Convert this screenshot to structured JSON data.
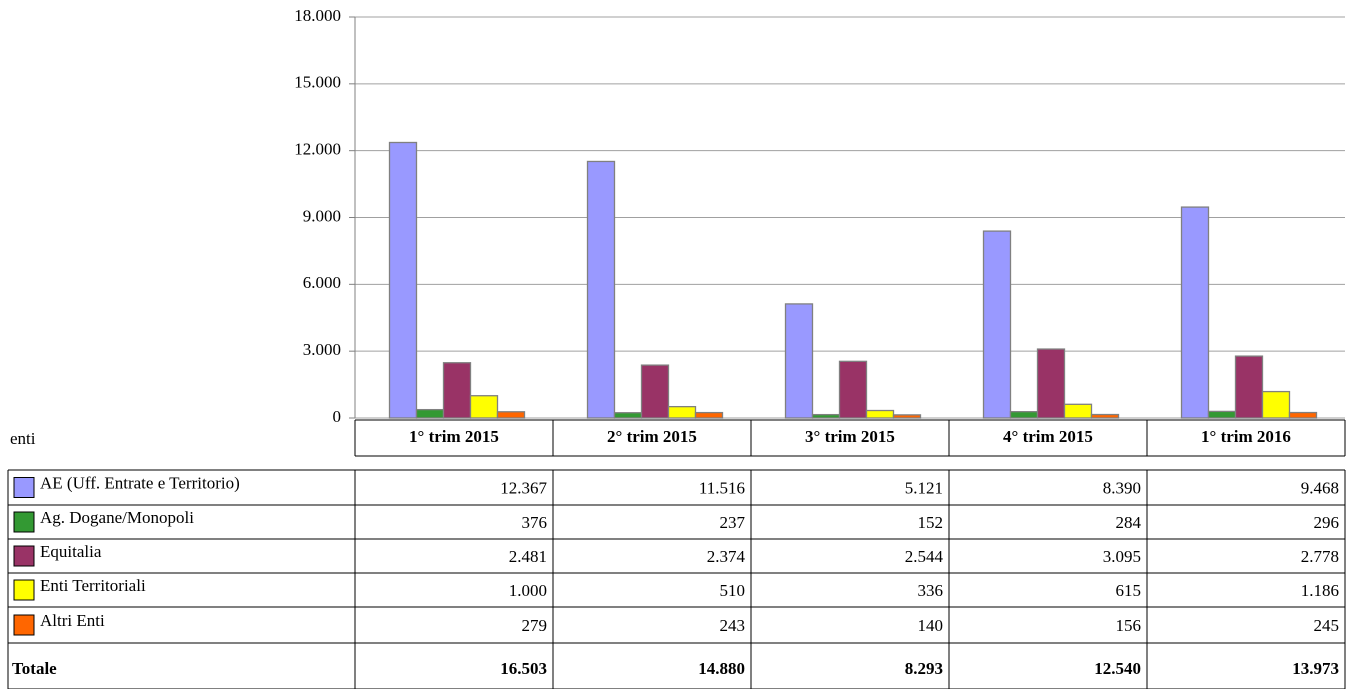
{
  "chart_data": {
    "type": "bar",
    "categories": [
      "1° trim 2015",
      "2° trim 2015",
      "3° trim 2015",
      "4° trim 2015",
      "1° trim 2016"
    ],
    "series": [
      {
        "name": "AE (Uff. Entrate e Territorio)",
        "color": "#9999ff",
        "values": [
          12367,
          11516,
          5121,
          8390,
          9468
        ],
        "value_labels": [
          "12.367",
          "11.516",
          "5.121",
          "8.390",
          "9.468"
        ]
      },
      {
        "name": "Ag. Dogane/Monopoli",
        "color": "#339933",
        "values": [
          376,
          237,
          152,
          284,
          296
        ],
        "value_labels": [
          "376",
          "237",
          "152",
          "284",
          "296"
        ]
      },
      {
        "name": "Equitalia",
        "color": "#993366",
        "values": [
          2481,
          2374,
          2544,
          3095,
          2778
        ],
        "value_labels": [
          "2.481",
          "2.374",
          "2.544",
          "3.095",
          "2.778"
        ]
      },
      {
        "name": "Enti Territoriali",
        "color": "#ffff00",
        "values": [
          1000,
          510,
          336,
          615,
          1186
        ],
        "value_labels": [
          "1.000",
          "510",
          "336",
          "615",
          "1.186"
        ]
      },
      {
        "name": "Altri Enti",
        "color": "#ff6600",
        "values": [
          279,
          243,
          140,
          156,
          245
        ],
        "value_labels": [
          "279",
          "243",
          "140",
          "156",
          "245"
        ]
      }
    ],
    "table_header": "enti",
    "total": {
      "name": "Totale",
      "values": [
        16503,
        14880,
        8293,
        12540,
        13973
      ],
      "value_labels": [
        "16.503",
        "14.880",
        "8.293",
        "12.540",
        "13.973"
      ]
    },
    "ylim": [
      0,
      18000
    ],
    "yticks": [
      0,
      {
        "value": 3000,
        "label": "3.000"
      },
      {
        "value": 6000,
        "label": "6.000"
      },
      {
        "value": 9000,
        "label": "9.000"
      },
      {
        "value": 12000,
        "label": "12.000"
      },
      {
        "value": 15000,
        "label": "15.000"
      },
      {
        "value": 18000,
        "label": "18.000"
      }
    ],
    "grid": true
  }
}
